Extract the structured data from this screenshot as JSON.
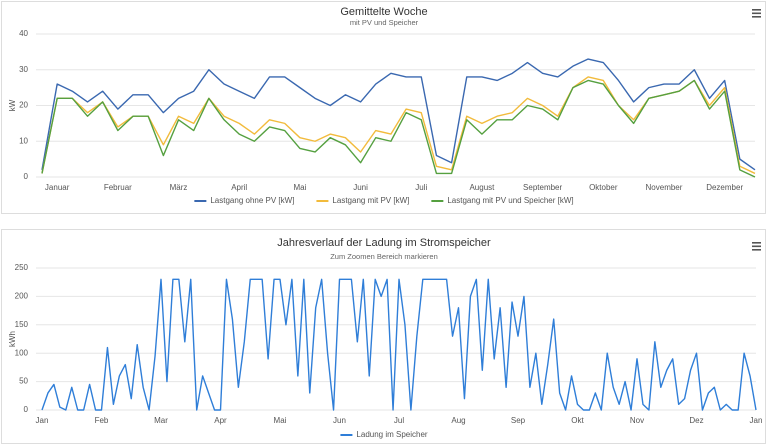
{
  "chart_data": [
    {
      "type": "line",
      "title": "Gemittelte Woche",
      "subtitle": "mit PV und Speicher",
      "ylabel": "kW",
      "categories": [
        null,
        "Januar",
        null,
        null,
        null,
        "Februar",
        null,
        null,
        null,
        "März",
        null,
        null,
        null,
        "April",
        null,
        null,
        null,
        "Mai",
        null,
        null,
        null,
        "Juni",
        null,
        null,
        null,
        "Juli",
        null,
        null,
        null,
        "August",
        null,
        null,
        null,
        "September",
        null,
        null,
        null,
        "Oktober",
        null,
        null,
        null,
        "November",
        null,
        null,
        null,
        "Dezember",
        null,
        null
      ],
      "ylim": [
        0,
        40
      ],
      "yticks": [
        0,
        10,
        20,
        30,
        40
      ],
      "grid": true,
      "series": [
        {
          "name": "Lastgang ohne PV [kW]",
          "color": "#3a68b0",
          "values": [
            2,
            26,
            24,
            21,
            24,
            19,
            23,
            23,
            18,
            22,
            24,
            30,
            26,
            24,
            22,
            28,
            28,
            25,
            22,
            20,
            23,
            21,
            26,
            29,
            28,
            28,
            6,
            4,
            28,
            28,
            27,
            29,
            32,
            29,
            28,
            31,
            33,
            32,
            27,
            21,
            25,
            26,
            26,
            30,
            22,
            27,
            5,
            2
          ]
        },
        {
          "name": "Lastgang mit PV [kW]",
          "color": "#f2bb3c",
          "values": [
            1,
            22,
            22,
            18,
            21,
            14,
            17,
            17,
            9,
            17,
            15,
            22,
            17,
            15,
            12,
            16,
            15,
            11,
            10,
            12,
            11,
            7,
            13,
            12,
            19,
            18,
            3,
            2,
            17,
            15,
            17,
            18,
            22,
            20,
            17,
            25,
            28,
            27,
            20,
            16,
            22,
            23,
            24,
            27,
            20,
            25,
            3,
            1
          ]
        },
        {
          "name": "Lastgang mit PV und Speicher [kW]",
          "color": "#55a040",
          "values": [
            1,
            22,
            22,
            17,
            21,
            13,
            17,
            17,
            6,
            16,
            13,
            22,
            16,
            12,
            10,
            14,
            13,
            8,
            7,
            11,
            9,
            4,
            11,
            10,
            18,
            16,
            1,
            1,
            16,
            12,
            16,
            16,
            20,
            19,
            16,
            25,
            27,
            26,
            20,
            15,
            22,
            23,
            24,
            27,
            19,
            24,
            2,
            0
          ]
        }
      ]
    },
    {
      "type": "line",
      "title": "Jahresverlauf der Ladung im Stromspeicher",
      "subtitle": "Zum Zoomen Bereich markieren",
      "ylabel": "kWh",
      "categories": [
        "Jan",
        null,
        null,
        null,
        null,
        null,
        null,
        null,
        null,
        null,
        "Feb",
        null,
        null,
        null,
        null,
        null,
        null,
        null,
        null,
        null,
        "Mar",
        null,
        null,
        null,
        null,
        null,
        null,
        null,
        null,
        null,
        "Apr",
        null,
        null,
        null,
        null,
        null,
        null,
        null,
        null,
        null,
        "Mai",
        null,
        null,
        null,
        null,
        null,
        null,
        null,
        null,
        null,
        "Jun",
        null,
        null,
        null,
        null,
        null,
        null,
        null,
        null,
        null,
        "Jul",
        null,
        null,
        null,
        null,
        null,
        null,
        null,
        null,
        null,
        "Aug",
        null,
        null,
        null,
        null,
        null,
        null,
        null,
        null,
        null,
        "Sep",
        null,
        null,
        null,
        null,
        null,
        null,
        null,
        null,
        null,
        "Okt",
        null,
        null,
        null,
        null,
        null,
        null,
        null,
        null,
        null,
        "Nov",
        null,
        null,
        null,
        null,
        null,
        null,
        null,
        null,
        null,
        "Dez",
        null,
        null,
        null,
        null,
        null,
        null,
        null,
        null,
        null,
        "Jan"
      ],
      "ylim": [
        0,
        250
      ],
      "yticks": [
        0,
        50,
        100,
        150,
        200,
        250
      ],
      "grid": true,
      "series": [
        {
          "name": "Ladung im Speicher",
          "color": "#2f7ed8",
          "values": [
            0,
            30,
            45,
            5,
            0,
            40,
            0,
            0,
            45,
            0,
            0,
            110,
            10,
            60,
            80,
            20,
            115,
            40,
            0,
            95,
            230,
            50,
            230,
            230,
            120,
            230,
            0,
            60,
            30,
            0,
            0,
            230,
            160,
            40,
            120,
            230,
            230,
            230,
            90,
            230,
            230,
            150,
            230,
            60,
            230,
            30,
            180,
            230,
            100,
            0,
            230,
            230,
            230,
            120,
            230,
            60,
            230,
            200,
            230,
            0,
            230,
            150,
            0,
            130,
            230,
            230,
            230,
            230,
            230,
            130,
            180,
            20,
            200,
            230,
            70,
            230,
            90,
            180,
            40,
            190,
            130,
            200,
            40,
            100,
            10,
            80,
            160,
            30,
            0,
            60,
            10,
            0,
            0,
            30,
            0,
            100,
            40,
            10,
            50,
            0,
            90,
            10,
            0,
            120,
            40,
            70,
            90,
            10,
            20,
            70,
            100,
            0,
            30,
            40,
            0,
            10,
            0,
            0,
            100,
            60,
            0
          ]
        }
      ]
    }
  ]
}
